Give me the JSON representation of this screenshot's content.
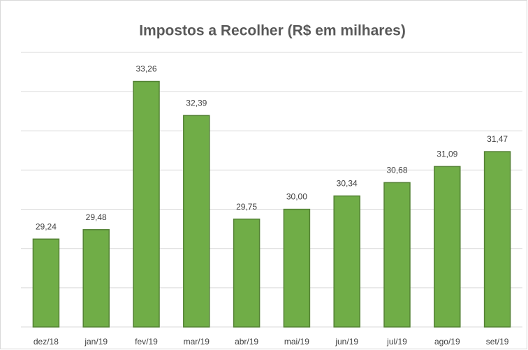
{
  "chart_data": {
    "type": "bar",
    "title": "Impostos a Recolher  (R$ em milhares)",
    "categories": [
      "dez/18",
      "jan/19",
      "fev/19",
      "mar/19",
      "abr/19",
      "mai/19",
      "jun/19",
      "jul/19",
      "ago/19",
      "set/19"
    ],
    "values": [
      29.24,
      29.48,
      33.26,
      32.39,
      29.75,
      30.0,
      30.34,
      30.68,
      31.09,
      31.47
    ],
    "value_labels": [
      "29,24",
      "29,48",
      "33,26",
      "32,39",
      "29,75",
      "30,00",
      "30,34",
      "30,68",
      "31,09",
      "31,47"
    ],
    "color": "#70ad47",
    "ylim": [
      27,
      34
    ],
    "yticks": [
      27,
      28,
      29,
      30,
      31,
      32,
      33,
      34
    ],
    "grid": true
  }
}
